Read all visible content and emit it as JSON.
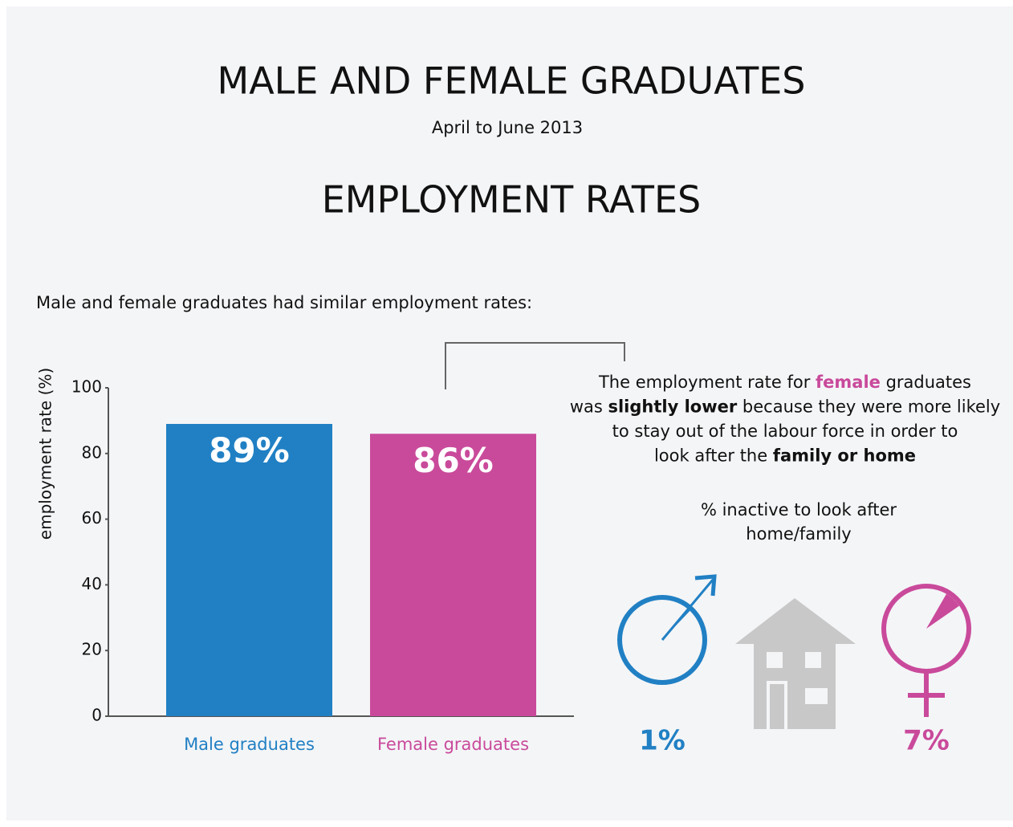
{
  "chart_data": {
    "type": "bar",
    "title": "MALE AND FEMALE GRADUATES",
    "subtitle": "April to June 2013",
    "heading": "EMPLOYMENT RATES",
    "intro": "Male and female graduates had similar employment rates:",
    "y_label": "employment rate (%)",
    "categories": [
      "Male graduates",
      "Female graduates"
    ],
    "values": [
      89,
      86
    ],
    "value_labels": [
      "89%",
      "86%"
    ],
    "colors": [
      "#2180c4",
      "#c94a9b"
    ],
    "ylim": [
      0,
      100
    ],
    "yticks": [
      0,
      20,
      40,
      60,
      80,
      100
    ],
    "annotation": [
      [
        {
          "text": "The employment rate for "
        },
        {
          "text": "female",
          "bold": true,
          "color": "#c94a9b"
        },
        {
          "text": " graduates"
        }
      ],
      [
        {
          "text": "was "
        },
        {
          "text": "slightly lower",
          "bold": true
        },
        {
          "text": " because they were more likely"
        }
      ],
      [
        {
          "text": "to stay out of the labour force in order to"
        }
      ],
      [
        {
          "text": "look after the "
        },
        {
          "text": "family or home",
          "bold": true
        }
      ]
    ],
    "inactive": {
      "title": [
        "% inactive to look after",
        "home/family"
      ],
      "values": [
        1,
        7
      ],
      "value_labels": [
        "1%",
        "7%"
      ],
      "colors": [
        "#2180c4",
        "#c94a9b"
      ]
    }
  }
}
